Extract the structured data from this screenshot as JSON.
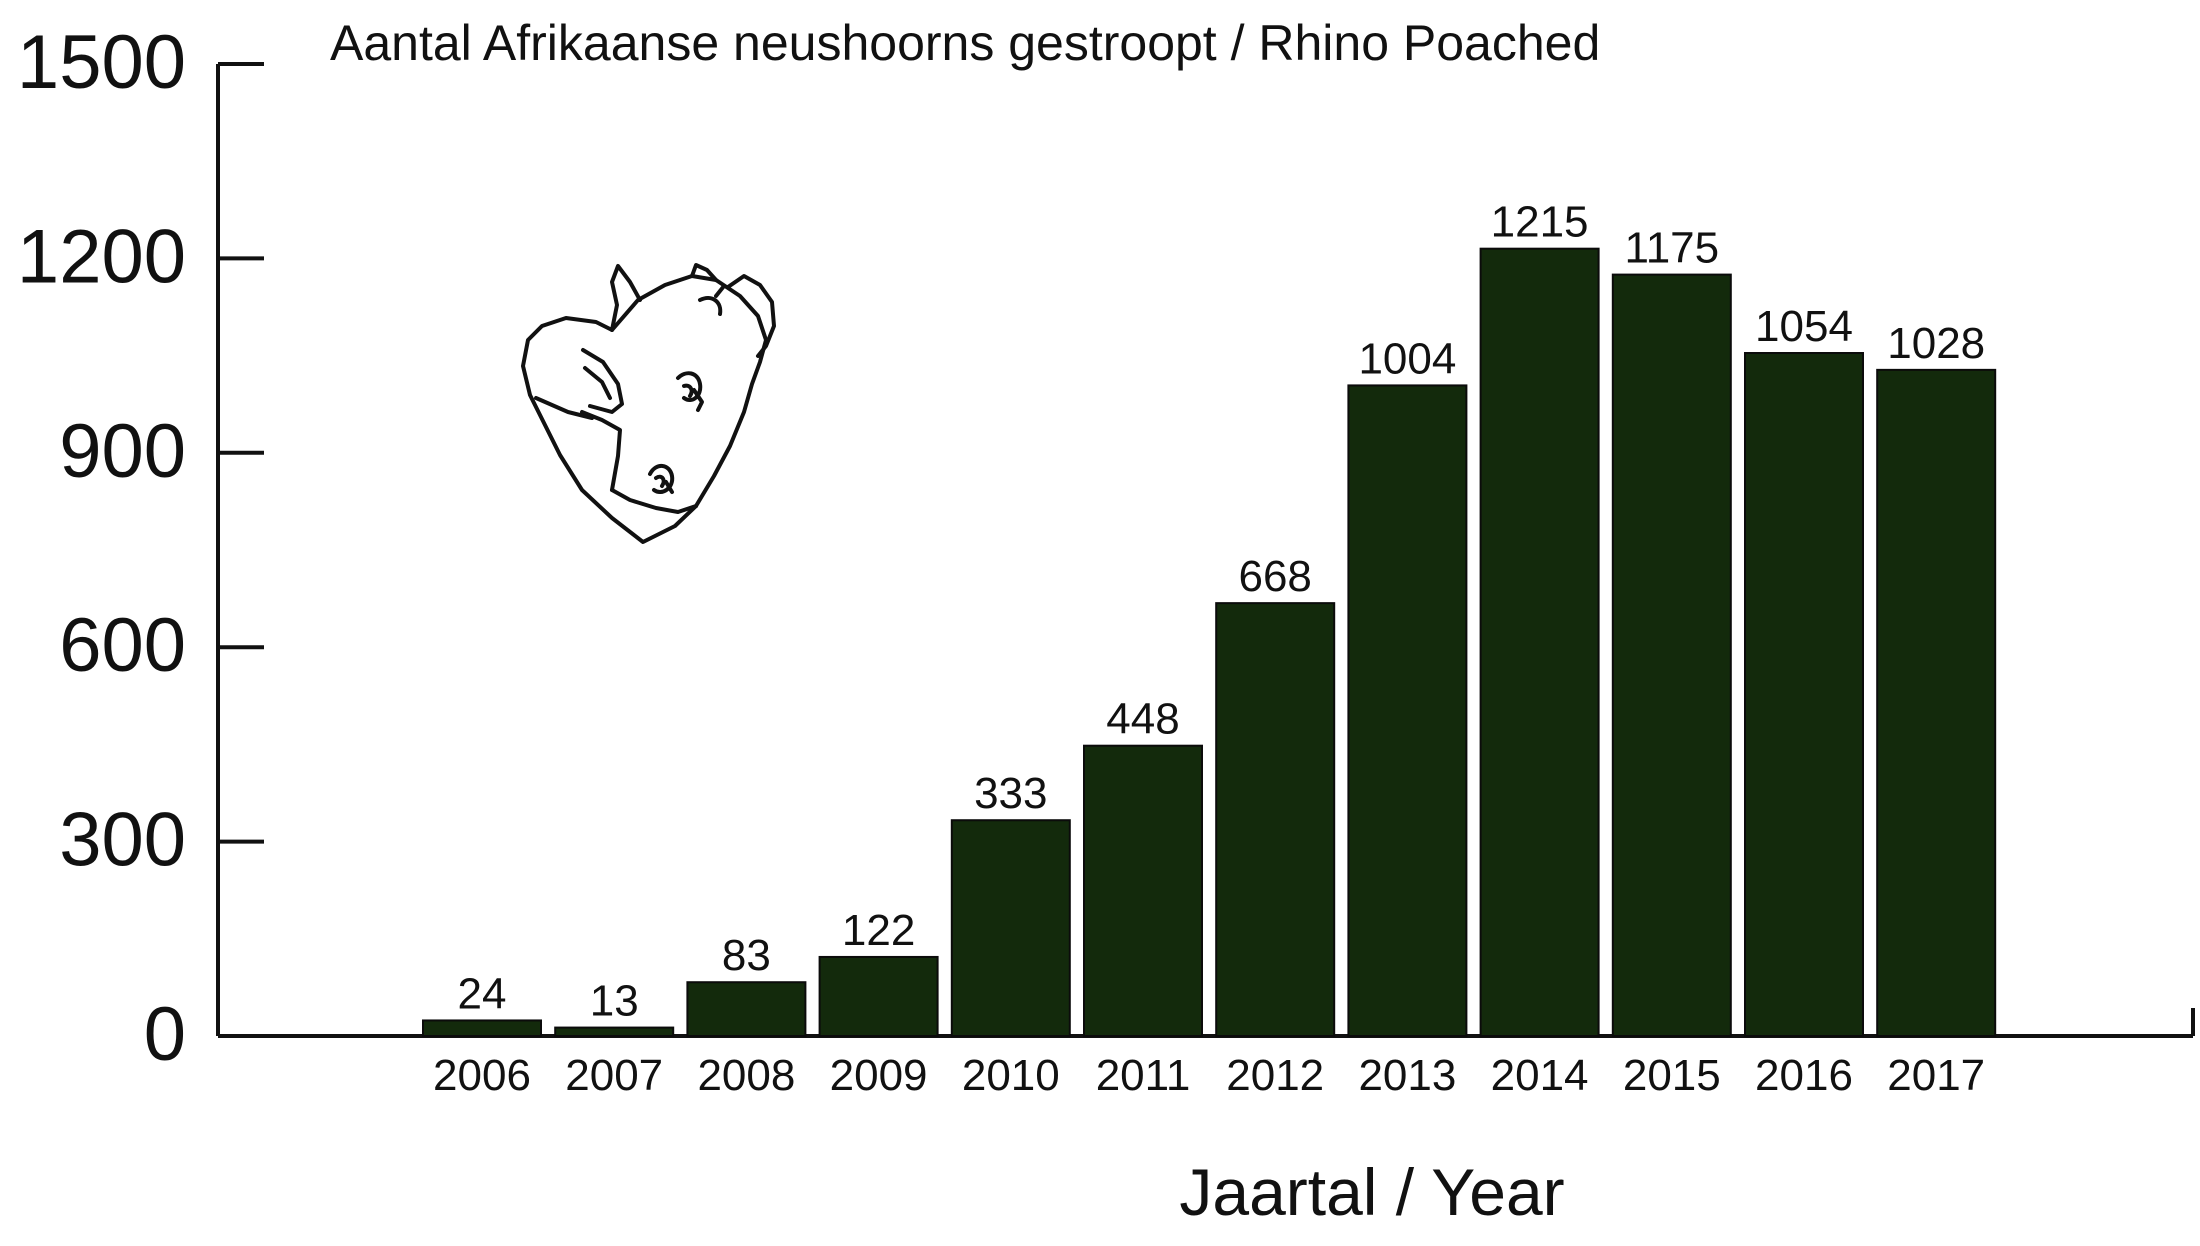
{
  "chart_data": {
    "type": "bar",
    "title": "Aantal Afrikaanse neushoorns gestroopt / Rhino Poached",
    "xlabel": "Jaartal / Year",
    "ylabel": "",
    "categories": [
      "2006",
      "2007",
      "2008",
      "2009",
      "2010",
      "2011",
      "2012",
      "2013",
      "2014",
      "2015",
      "2016",
      "2017"
    ],
    "values": [
      24,
      13,
      83,
      122,
      333,
      448,
      668,
      1004,
      1215,
      1175,
      1054,
      1028
    ],
    "ylim": [
      0,
      1500
    ],
    "yticks": [
      0,
      300,
      600,
      900,
      1200,
      1500
    ],
    "data_labels": true,
    "grid": false,
    "legend": "none",
    "colors": {
      "bar": "#132a0c",
      "axis": "#111111",
      "text": "#111111"
    },
    "icon": "rhino-head-icon"
  }
}
